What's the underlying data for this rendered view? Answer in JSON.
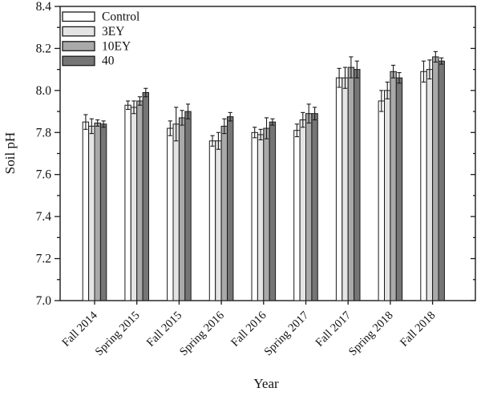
{
  "figure": {
    "background": "#ffffff",
    "frame_color": "#1a1a1a",
    "bar_edge_color": "#1a1a1a",
    "error_bar_color": "#1a1a1a"
  },
  "chart_data": {
    "type": "bar",
    "title": "",
    "xlabel": "Year",
    "ylabel": "Soil pH",
    "ylim": [
      7.0,
      8.4
    ],
    "ytick_major": 0.2,
    "ytick_minor": 0.1,
    "ytick_labels": [
      "7.0",
      "7.2",
      "7.4",
      "7.6",
      "7.8",
      "8.0",
      "8.2",
      "8.4"
    ],
    "grid": false,
    "legend_position": "top-left",
    "error_bars": "symmetric",
    "categories": [
      "Fall 2014",
      "Spring 2015",
      "Fall 2015",
      "Spring 2016",
      "Fall 2016",
      "Spring 2017",
      "Fall 2017",
      "Spring 2018",
      "Fall 2018"
    ],
    "series": [
      {
        "name": "Control",
        "color": "#ffffff",
        "values": [
          7.85,
          7.93,
          7.82,
          7.76,
          7.8,
          7.81,
          8.06,
          7.95,
          8.09
        ],
        "errors": [
          0.035,
          0.02,
          0.035,
          0.025,
          0.025,
          0.03,
          0.045,
          0.05,
          0.05
        ]
      },
      {
        "name": "3EY",
        "color": "#e4e4e4",
        "values": [
          7.83,
          7.92,
          7.84,
          7.76,
          7.79,
          7.86,
          8.06,
          8.0,
          8.1
        ],
        "errors": [
          0.035,
          0.03,
          0.08,
          0.04,
          0.025,
          0.035,
          0.05,
          0.04,
          0.045
        ]
      },
      {
        "name": "10EY",
        "color": "#a9a9a9",
        "values": [
          7.845,
          7.95,
          7.87,
          7.83,
          7.82,
          7.89,
          8.11,
          8.09,
          8.16
        ],
        "errors": [
          0.015,
          0.02,
          0.035,
          0.035,
          0.05,
          0.045,
          0.05,
          0.03,
          0.025
        ]
      },
      {
        "name": "40",
        "color": "#757575",
        "values": [
          7.84,
          7.99,
          7.9,
          7.875,
          7.85,
          7.89,
          8.1,
          8.06,
          8.14
        ],
        "errors": [
          0.015,
          0.02,
          0.035,
          0.02,
          0.015,
          0.03,
          0.04,
          0.025,
          0.015
        ]
      }
    ]
  }
}
